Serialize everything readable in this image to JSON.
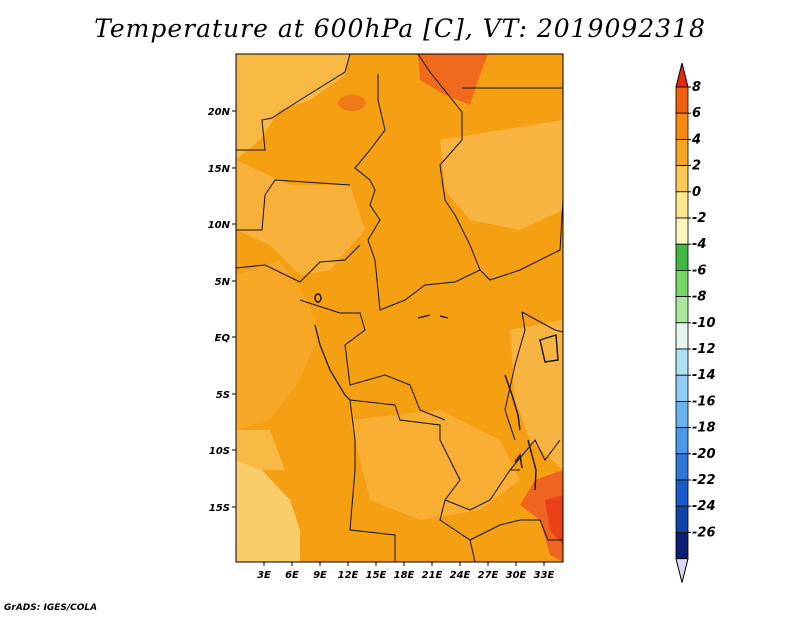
{
  "title": "Temperature at 600hPa [C], VT: 2019092318",
  "credit": "GrADS: IGES/COLA",
  "map": {
    "lon_labels": [
      "3E",
      "6E",
      "9E",
      "12E",
      "15E",
      "18E",
      "21E",
      "24E",
      "27E",
      "30E",
      "33E"
    ],
    "lat_labels": [
      "20N",
      "15N",
      "10N",
      "5N",
      "EQ",
      "5S",
      "10S",
      "15S"
    ]
  },
  "colorbar": {
    "labels": [
      "8",
      "6",
      "4",
      "2",
      "0",
      "-2",
      "-4",
      "-6",
      "-8",
      "-10",
      "-12",
      "-14",
      "-16",
      "-18",
      "-20",
      "-22",
      "-24",
      "-26"
    ],
    "colors": [
      "#e8280e",
      "#f06010",
      "#f58a0f",
      "#f7a622",
      "#fbc855",
      "#fde78c",
      "#fef7bd",
      "#41b845",
      "#77d666",
      "#a9e89a",
      "#e3f7f0",
      "#aee0f3",
      "#8fcbf3",
      "#6bb4ef",
      "#4a98e6",
      "#2f78d8",
      "#195bc8",
      "#0c44a8",
      "#0a1f74",
      "#dcd8f4"
    ]
  }
}
